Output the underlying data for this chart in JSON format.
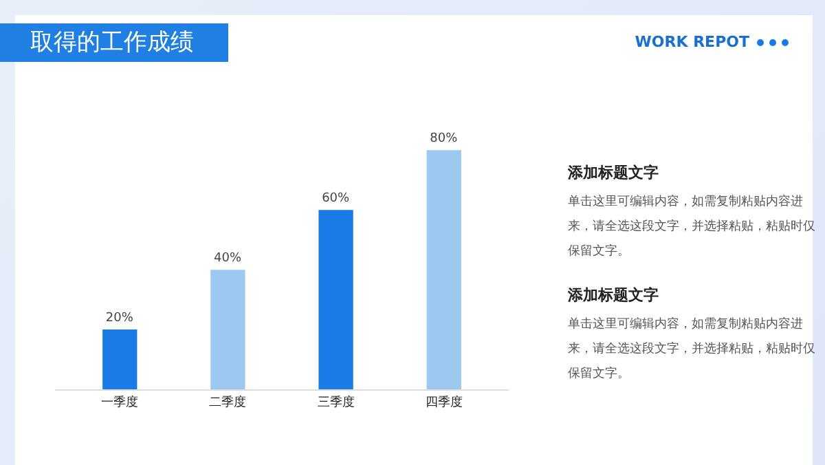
{
  "chart_data": {
    "type": "bar",
    "title": "取得的工作成绩",
    "categories": [
      "一季度",
      "二季度",
      "三季度",
      "四季度"
    ],
    "values": [
      20,
      40,
      60,
      80
    ],
    "value_labels": [
      "20%",
      "40%",
      "60%",
      "80%"
    ],
    "colors": [
      "#1a7be6",
      "#9dc8f0",
      "#1a7be6",
      "#9dc8f0"
    ],
    "annotations": [
      "WORK REPOT",
      "添加标题文字",
      "单击这里可编辑内容，如需复制粘贴内容进来，请全选这段文字，并选择粘贴，粘贴时仅保留文字。",
      "添加标题文字",
      "单击这里可编辑内容，如需复制粘贴内容进来，请全选这段文字，并选择粘贴，粘贴时仅保留文字。"
    ]
  }
}
